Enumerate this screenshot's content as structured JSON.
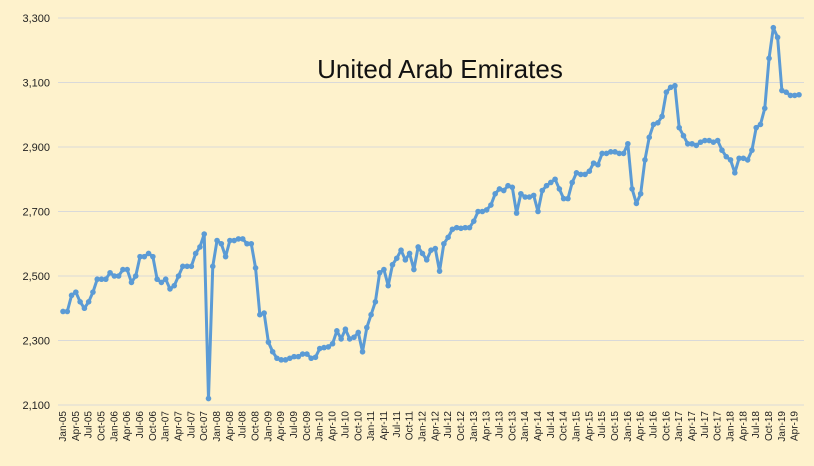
{
  "chart_data": {
    "type": "line",
    "title": "United Arab Emirates",
    "xlabel": "",
    "ylabel": "",
    "ylim": [
      2100,
      3300
    ],
    "yticks": [
      2100,
      2300,
      2500,
      2700,
      2900,
      3100,
      3300
    ],
    "ytick_labels": [
      "2,100",
      "2,300",
      "2,500",
      "2,700",
      "2,900",
      "3,100",
      "3,300"
    ],
    "grid": true,
    "legend": "none",
    "x_start": "Jan-05",
    "x_tick_labels": [
      "Jan-05",
      "Apr-05",
      "Jul-05",
      "Oct-05",
      "Jan-06",
      "Apr-06",
      "Jul-06",
      "Oct-06",
      "Jan-07",
      "Apr-07",
      "Jul-07",
      "Oct-07",
      "Jan-08",
      "Apr-08",
      "Jul-08",
      "Oct-08",
      "Jan-09",
      "Apr-09",
      "Jul-09",
      "Oct-09",
      "Jan-10",
      "Apr-10",
      "Jul-10",
      "Oct-10",
      "Jan-11",
      "Apr-11",
      "Jul-11",
      "Oct-11",
      "Jan-12",
      "Apr-12",
      "Jul-12",
      "Oct-12",
      "Jan-13",
      "Apr-13",
      "Jul-13",
      "Oct-13",
      "Jan-14",
      "Apr-14",
      "Jul-14",
      "Oct-14",
      "Jan-15",
      "Apr-15",
      "Jul-15",
      "Oct-15",
      "Jan-16",
      "Apr-16",
      "Jul-16",
      "Oct-16",
      "Jan-17",
      "Apr-17",
      "Jul-17",
      "Oct-17",
      "Jan-18",
      "Apr-18",
      "Jul-18",
      "Oct-18",
      "Jan-19",
      "Apr-19"
    ],
    "line_color": "#5B9BD5",
    "values": [
      2390,
      2390,
      2440,
      2450,
      2420,
      2400,
      2420,
      2450,
      2490,
      2490,
      2490,
      2510,
      2500,
      2500,
      2520,
      2520,
      2480,
      2500,
      2560,
      2560,
      2570,
      2560,
      2490,
      2480,
      2490,
      2460,
      2470,
      2500,
      2530,
      2530,
      2530,
      2570,
      2590,
      2630,
      2120,
      2530,
      2610,
      2600,
      2560,
      2610,
      2610,
      2615,
      2615,
      2600,
      2600,
      2525,
      2380,
      2385,
      2295,
      2265,
      2245,
      2240,
      2240,
      2245,
      2250,
      2250,
      2258,
      2258,
      2245,
      2248,
      2275,
      2278,
      2280,
      2290,
      2330,
      2305,
      2335,
      2305,
      2310,
      2325,
      2265,
      2340,
      2380,
      2420,
      2510,
      2520,
      2470,
      2535,
      2555,
      2580,
      2550,
      2570,
      2520,
      2590,
      2570,
      2550,
      2580,
      2585,
      2515,
      2600,
      2620,
      2645,
      2650,
      2648,
      2650,
      2650,
      2670,
      2700,
      2700,
      2705,
      2720,
      2755,
      2770,
      2765,
      2780,
      2775,
      2695,
      2755,
      2745,
      2745,
      2750,
      2700,
      2765,
      2780,
      2790,
      2800,
      2770,
      2740,
      2740,
      2790,
      2820,
      2815,
      2815,
      2825,
      2850,
      2845,
      2880,
      2880,
      2885,
      2885,
      2880,
      2880,
      2910,
      2770,
      2725,
      2755,
      2860,
      2930,
      2970,
      2975,
      2995,
      3070,
      3085,
      3090,
      2960,
      2935,
      2910,
      2910,
      2905,
      2915,
      2920,
      2920,
      2915,
      2920,
      2890,
      2870,
      2860,
      2820,
      2865,
      2865,
      2860,
      2890,
      2960,
      2970,
      3020,
      3175,
      3270,
      3240,
      3075,
      3070,
      3060,
      3060,
      3062
    ]
  }
}
